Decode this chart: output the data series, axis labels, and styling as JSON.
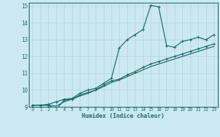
{
  "xlabel": "Humidex (Indice chaleur)",
  "background_color": "#cce8f0",
  "grid_color": "#b8d8e4",
  "line_color": "#1a6b6b",
  "xlim": [
    -0.5,
    23.5
  ],
  "ylim": [
    9,
    15.2
  ],
  "xticks": [
    0,
    1,
    2,
    3,
    4,
    5,
    6,
    7,
    8,
    9,
    10,
    11,
    12,
    13,
    14,
    15,
    16,
    17,
    18,
    19,
    20,
    21,
    22,
    23
  ],
  "yticks": [
    9,
    10,
    11,
    12,
    13,
    14,
    15
  ],
  "series1_x": [
    0,
    1,
    2,
    3,
    4,
    5,
    6,
    7,
    8,
    9,
    10,
    11,
    12,
    13,
    14,
    15,
    16,
    17,
    18,
    19,
    20,
    21,
    22,
    23
  ],
  "series1_y": [
    9.1,
    9.1,
    9.15,
    9.3,
    9.45,
    9.5,
    9.8,
    10.0,
    10.1,
    10.4,
    10.7,
    12.5,
    13.0,
    13.3,
    13.6,
    15.05,
    14.95,
    12.65,
    12.55,
    12.9,
    13.0,
    13.15,
    13.0,
    13.3
  ],
  "series2_x": [
    0,
    1,
    2,
    3,
    4,
    5,
    6,
    7,
    8,
    9,
    10,
    11,
    12,
    13,
    14,
    15,
    16,
    17,
    18,
    19,
    20,
    21,
    22,
    23
  ],
  "series2_y": [
    9.1,
    9.1,
    9.1,
    8.85,
    9.4,
    9.45,
    9.7,
    9.85,
    10.0,
    10.3,
    10.55,
    10.65,
    10.9,
    11.1,
    11.35,
    11.55,
    11.7,
    11.85,
    12.0,
    12.15,
    12.3,
    12.45,
    12.6,
    12.75
  ],
  "series3_x": [
    0,
    1,
    2,
    3,
    4,
    5,
    6,
    7,
    8,
    9,
    10,
    11,
    12,
    13,
    14,
    15,
    16,
    17,
    18,
    19,
    20,
    21,
    22,
    23
  ],
  "series3_y": [
    9.1,
    9.1,
    9.1,
    9.05,
    9.3,
    9.45,
    9.65,
    9.8,
    10.0,
    10.2,
    10.45,
    10.6,
    10.8,
    11.0,
    11.2,
    11.4,
    11.55,
    11.7,
    11.85,
    12.0,
    12.15,
    12.3,
    12.45,
    12.6
  ]
}
